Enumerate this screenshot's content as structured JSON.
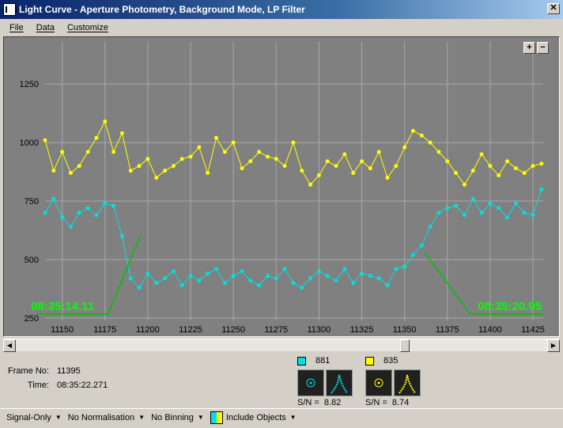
{
  "window": {
    "title": "Light Curve - Aperture Photometry, Background Mode, LP Filter",
    "close_label": "✕"
  },
  "menu": [
    {
      "label": "File"
    },
    {
      "label": "Data"
    },
    {
      "label": "Customize"
    }
  ],
  "toolbar": {
    "zoom_in": "+",
    "zoom_out": "−"
  },
  "chart_data": {
    "type": "line",
    "xlim": [
      11140,
      11431
    ],
    "ylim": [
      240,
      1430
    ],
    "x_ticks": [
      11150,
      11175,
      11200,
      11225,
      11250,
      11275,
      11300,
      11325,
      11350,
      11375,
      11400,
      11425
    ],
    "y_ticks": [
      250,
      500,
      750,
      1000,
      1250
    ],
    "grid": true,
    "background": "#808080",
    "series": [
      {
        "color": "#ffff00",
        "x": [
          11140,
          11145,
          11150,
          11155,
          11160,
          11165,
          11170,
          11175,
          11180,
          11185,
          11190,
          11195,
          11200,
          11205,
          11210,
          11215,
          11220,
          11225,
          11230,
          11235,
          11240,
          11245,
          11250,
          11255,
          11260,
          11265,
          11270,
          11275,
          11280,
          11285,
          11290,
          11295,
          11300,
          11305,
          11310,
          11315,
          11320,
          11325,
          11330,
          11335,
          11340,
          11345,
          11350,
          11355,
          11360,
          11365,
          11370,
          11375,
          11380,
          11385,
          11390,
          11395,
          11400,
          11405,
          11410,
          11415,
          11420,
          11425,
          11430
        ],
        "values": [
          1010,
          880,
          960,
          870,
          900,
          960,
          1020,
          1090,
          960,
          1040,
          880,
          900,
          930,
          850,
          880,
          900,
          930,
          940,
          980,
          870,
          1020,
          960,
          1000,
          890,
          920,
          960,
          940,
          930,
          900,
          1000,
          880,
          820,
          860,
          920,
          900,
          950,
          870,
          920,
          890,
          960,
          850,
          900,
          980,
          1050,
          1030,
          1000,
          960,
          920,
          870,
          820,
          880,
          950,
          900,
          860,
          920,
          890,
          870,
          900,
          910
        ]
      },
      {
        "color": "#00e0e0",
        "x": [
          11140,
          11145,
          11150,
          11155,
          11160,
          11165,
          11170,
          11175,
          11180,
          11185,
          11190,
          11195,
          11200,
          11205,
          11210,
          11215,
          11220,
          11225,
          11230,
          11235,
          11240,
          11245,
          11250,
          11255,
          11260,
          11265,
          11270,
          11275,
          11280,
          11285,
          11290,
          11295,
          11300,
          11305,
          11310,
          11315,
          11320,
          11325,
          11330,
          11335,
          11340,
          11345,
          11350,
          11355,
          11360,
          11365,
          11370,
          11375,
          11380,
          11385,
          11390,
          11395,
          11400,
          11405,
          11410,
          11415,
          11420,
          11425,
          11430
        ],
        "values": [
          700,
          760,
          680,
          640,
          700,
          720,
          690,
          740,
          730,
          600,
          420,
          380,
          440,
          400,
          420,
          450,
          390,
          430,
          410,
          440,
          460,
          400,
          430,
          450,
          410,
          390,
          430,
          420,
          460,
          400,
          380,
          420,
          450,
          430,
          410,
          460,
          400,
          440,
          430,
          420,
          390,
          460,
          470,
          520,
          560,
          640,
          700,
          720,
          730,
          690,
          760,
          700,
          740,
          720,
          680,
          740,
          700,
          690,
          800
        ]
      }
    ],
    "annotations": [
      {
        "label": "08:35:14.11"
      },
      {
        "label": "08:35:20.95"
      }
    ]
  },
  "frame": {
    "frame_label": "Frame No:",
    "frame_value": "11395",
    "time_label": "Time:",
    "time_value": "08:35:22.271"
  },
  "stars": [
    {
      "id": "881",
      "color": "#00e0e0",
      "sn_label": "S/N =",
      "sn_value": "8.82"
    },
    {
      "id": "835",
      "color": "#ffff00",
      "sn_label": "S/N =",
      "sn_value": "8.74"
    }
  ],
  "statusbar": {
    "signal": "Signal-Only",
    "normalisation": "No Normalisation",
    "binning": "No Binning",
    "objects": "Include Objects"
  }
}
